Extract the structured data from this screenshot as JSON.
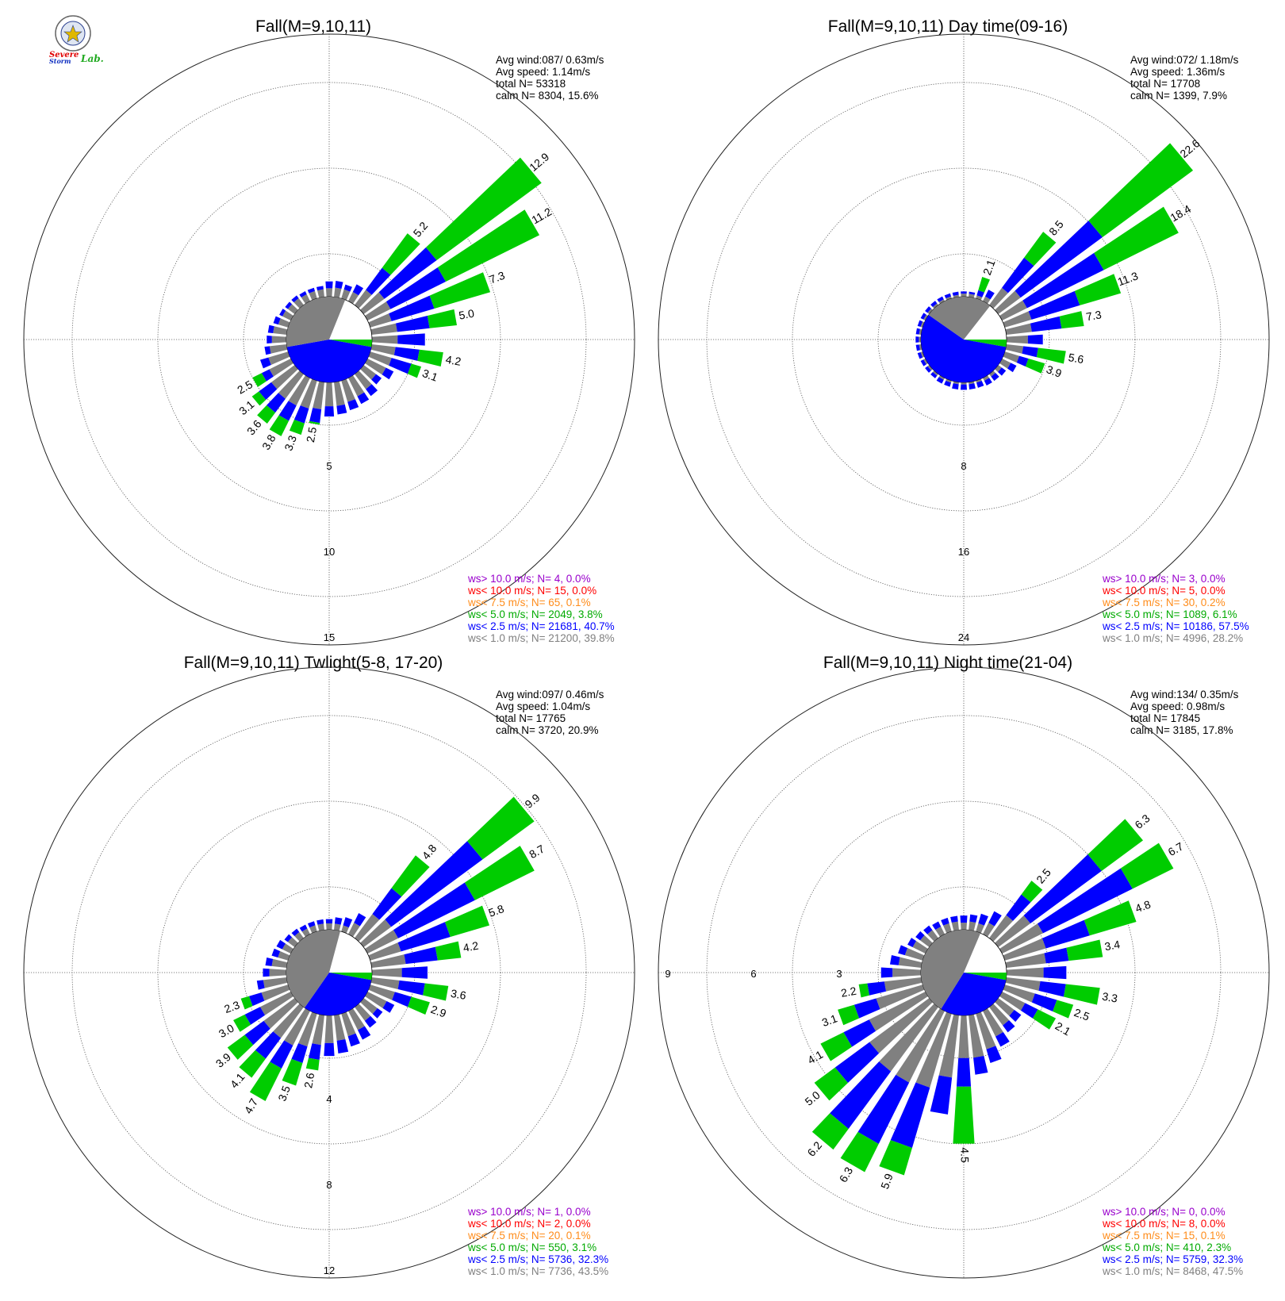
{
  "logo": {
    "text_a": "Severe",
    "text_b": "Storm",
    "text_c": "Lab."
  },
  "colors": {
    "calm_cw": "#808080",
    "calm_ccw": "#0000ff",
    "lt1": "#808080",
    "lt25": "#0000ff",
    "lt5": "#00cc00",
    "lt75": "#ff8c1a",
    "lt10": "#ff0000",
    "gt10": "#9900cc",
    "grid": "#555555"
  },
  "chart_data": [
    {
      "type": "windrose",
      "title": "Fall(M=9,10,11)",
      "stats": [
        "Avg wind:087/ 0.63m/s",
        "Avg speed: 1.14m/s",
        "total N=      53318",
        "calm N=   8304,  15.6%"
      ],
      "ring_labels": [
        "5",
        "10",
        "15"
      ],
      "ring_values": [
        5,
        10,
        15
      ],
      "calm_percent": 15.6,
      "calm_blue_end_deg": 260,
      "calm_gray_end_deg": 22,
      "legend": [
        "ws> 10.0 m/s; N=    4,  0.0%",
        "ws< 10.0 m/s; N=   15,  0.0%",
        "ws<  7.5 m/s; N=   65,  0.1%",
        "ws<  5.0 m/s; N= 2049,  3.8%",
        "ws<  2.5 m/s; N= 21681, 40.7%",
        "ws<  1.0 m/s; N= 21200, 39.8%"
      ],
      "bars": [
        [
          0,
          0.5,
          0.4
        ],
        [
          10,
          0.55,
          0.4
        ],
        [
          20,
          0.55,
          0.3
        ],
        [
          30,
          0.6,
          0.5
        ],
        [
          40,
          1.1,
          1.6,
          "5.2"
        ],
        [
          50,
          1.5,
          3.8,
          "12.9"
        ],
        [
          60,
          1.5,
          3.6,
          "11.2"
        ],
        [
          70,
          1.3,
          2.6,
          "7.3"
        ],
        [
          80,
          1.5,
          1.9,
          "5.0"
        ],
        [
          90,
          1.5,
          1.6
        ],
        [
          100,
          1.4,
          1.4,
          "4.2"
        ],
        [
          110,
          1.3,
          1.2,
          "3.1"
        ],
        [
          120,
          1.2,
          0.5
        ],
        [
          130,
          0.9,
          0.4
        ],
        [
          140,
          1.1,
          0.5
        ],
        [
          150,
          1.2,
          0.5
        ],
        [
          160,
          1.3,
          0.5
        ],
        [
          170,
          1.4,
          0.5
        ],
        [
          180,
          1.4,
          0.6
        ],
        [
          190,
          1.6,
          0.8,
          "2.5"
        ],
        [
          200,
          1.7,
          0.9,
          "3.3"
        ],
        [
          210,
          1.8,
          1.0,
          "3.8"
        ],
        [
          220,
          1.8,
          1.0,
          "3.6"
        ],
        [
          230,
          1.7,
          0.9,
          "3.1"
        ],
        [
          240,
          1.4,
          0.5,
          "2.5"
        ],
        [
          250,
          1.2,
          0.5
        ],
        [
          260,
          1.0,
          0.3
        ],
        [
          270,
          0.85,
          0.3
        ],
        [
          280,
          0.8,
          0.3
        ],
        [
          290,
          0.6,
          0.3
        ],
        [
          300,
          0.55,
          0.2
        ],
        [
          310,
          0.5,
          0.2
        ],
        [
          320,
          0.5,
          0.2
        ],
        [
          330,
          0.45,
          0.2
        ],
        [
          340,
          0.45,
          0.2
        ],
        [
          350,
          0.45,
          0.2
        ]
      ]
    },
    {
      "type": "windrose",
      "title": "Fall(M=9,10,11) Day time(09-16)",
      "stats": [
        "Avg wind:072/ 1.18m/s",
        "Avg speed: 1.36m/s",
        "total N=      17708",
        "calm N=   1399,   7.9%"
      ],
      "ring_labels": [
        "8",
        "16",
        "24"
      ],
      "ring_values": [
        8,
        16,
        24
      ],
      "calm_percent": 7.9,
      "calm_blue_end_deg": 305,
      "calm_gray_end_deg": 38,
      "legend": [
        "ws> 10.0 m/s; N=    3,  0.0%",
        "ws< 10.0 m/s; N=    5,  0.0%",
        "ws<  7.5 m/s; N=   30,  0.2%",
        "ws<  5.0 m/s; N= 1089,  6.1%",
        "ws<  2.5 m/s; N= 10186, 57.5%",
        "ws<  1.0 m/s; N=  4996, 28.2%"
      ],
      "bars": [
        [
          0,
          0.3,
          0.2
        ],
        [
          10,
          0.3,
          0.2
        ],
        [
          20,
          0.3,
          0.5,
          "2.1"
        ],
        [
          30,
          0.5,
          0.7
        ],
        [
          40,
          2.0,
          3.5,
          "8.5"
        ],
        [
          50,
          2.6,
          9.5,
          "22.6"
        ],
        [
          60,
          2.6,
          8.0,
          "18.4"
        ],
        [
          70,
          2.6,
          4.7,
          "11.3"
        ],
        [
          80,
          2.4,
          2.8,
          "7.3"
        ],
        [
          90,
          2.0,
          1.4
        ],
        [
          100,
          1.6,
          1.4,
          "5.6"
        ],
        [
          110,
          1.4,
          0.9,
          "3.9"
        ],
        [
          120,
          0.9,
          0.6
        ],
        [
          130,
          0.4,
          0.5
        ],
        [
          140,
          0.3,
          0.5
        ],
        [
          150,
          0.3,
          0.5
        ],
        [
          160,
          0.2,
          0.5
        ],
        [
          170,
          0.2,
          0.5
        ],
        [
          180,
          0.2,
          0.5
        ],
        [
          190,
          0.2,
          0.5
        ],
        [
          200,
          0.2,
          0.4
        ],
        [
          210,
          0.2,
          0.4
        ],
        [
          220,
          0.2,
          0.3
        ],
        [
          230,
          0.2,
          0.3
        ],
        [
          240,
          0.2,
          0.3
        ],
        [
          250,
          0.2,
          0.3
        ],
        [
          260,
          0.2,
          0.3
        ],
        [
          270,
          0.2,
          0.3
        ],
        [
          280,
          0.2,
          0.3
        ],
        [
          290,
          0.2,
          0.3
        ],
        [
          300,
          0.2,
          0.3
        ],
        [
          310,
          0.2,
          0.3
        ],
        [
          320,
          0.2,
          0.3
        ],
        [
          330,
          0.2,
          0.3
        ],
        [
          340,
          0.2,
          0.3
        ],
        [
          350,
          0.2,
          0.3
        ]
      ]
    },
    {
      "type": "windrose",
      "title": "Fall(M=9,10,11) Twlight(5-8, 17-20)",
      "stats": [
        "Avg wind:097/ 0.46m/s",
        "Avg speed: 1.04m/s",
        "total N=      17765",
        "calm N=   3720,  20.9%"
      ],
      "ring_labels": [
        "4",
        "8",
        "12"
      ],
      "ring_values": [
        4,
        8,
        12
      ],
      "calm_percent": 20.9,
      "calm_blue_end_deg": 215,
      "calm_gray_end_deg": 15,
      "legend": [
        "ws> 10.0 m/s; N=    1,  0.0%",
        "ws< 10.0 m/s; N=    2,  0.0%",
        "ws<  7.5 m/s; N=   20,  0.1%",
        "ws<  5.0 m/s; N=  550,  3.1%",
        "ws<  2.5 m/s; N=  5736, 32.3%",
        "ws<  1.0 m/s; N=  7736, 43.5%"
      ],
      "bars": [
        [
          0,
          0.3,
          0.2
        ],
        [
          10,
          0.3,
          0.3
        ],
        [
          20,
          0.3,
          0.4
        ],
        [
          30,
          0.6,
          0.5
        ],
        [
          40,
          1.4,
          1.5,
          "4.8"
        ],
        [
          50,
          1.6,
          5.3,
          "9.9"
        ],
        [
          60,
          1.6,
          4.0,
          "8.7"
        ],
        [
          70,
          1.5,
          2.4,
          "5.8"
        ],
        [
          80,
          1.6,
          1.5,
          "4.2"
        ],
        [
          90,
          1.4,
          1.2
        ],
        [
          100,
          1.3,
          1.2,
          "3.6"
        ],
        [
          110,
          1.2,
          0.8,
          "2.9"
        ],
        [
          120,
          1.0,
          0.4
        ],
        [
          130,
          0.8,
          0.3
        ],
        [
          140,
          0.8,
          0.4
        ],
        [
          150,
          1.0,
          0.5
        ],
        [
          160,
          1.1,
          0.5
        ],
        [
          170,
          1.2,
          0.6
        ],
        [
          180,
          1.3,
          0.6
        ],
        [
          190,
          1.4,
          0.7,
          "2.6"
        ],
        [
          200,
          1.6,
          0.8,
          "3.5"
        ],
        [
          210,
          1.8,
          1.2,
          "4.7"
        ],
        [
          220,
          1.8,
          1.2,
          "4.1"
        ],
        [
          230,
          1.8,
          1.1,
          "3.9"
        ],
        [
          240,
          1.6,
          0.8,
          "3.0"
        ],
        [
          250,
          1.3,
          0.6,
          "2.3"
        ],
        [
          260,
          1.1,
          0.3
        ],
        [
          270,
          0.8,
          0.3
        ],
        [
          280,
          0.7,
          0.3
        ],
        [
          290,
          0.5,
          0.3
        ],
        [
          300,
          0.45,
          0.3
        ],
        [
          310,
          0.4,
          0.2
        ],
        [
          320,
          0.35,
          0.2
        ],
        [
          330,
          0.3,
          0.2
        ],
        [
          340,
          0.3,
          0.2
        ],
        [
          350,
          0.3,
          0.2
        ]
      ]
    },
    {
      "type": "windrose",
      "title": "Fall(M=9,10,11) Night time(21-04)",
      "stats": [
        "Avg wind:134/ 0.35m/s",
        "Avg speed: 0.98m/s",
        "total N=      17845",
        "calm N=   3185,  17.8%"
      ],
      "ring_labels": [
        "3",
        "6",
        "9"
      ],
      "ring_values": [
        3,
        6,
        9
      ],
      "calm_percent": 17.8,
      "calm_blue_end_deg": 212,
      "calm_gray_end_deg": 23,
      "legend": [
        "ws> 10.0 m/s; N=    0,  0.0%",
        "ws< 10.0 m/s; N=    8,  0.0%",
        "ws<  7.5 m/s; N=   15,  0.1%",
        "ws<  5.0 m/s; N=  410,  2.3%",
        "ws<  2.5 m/s; N=  5759, 32.3%",
        "ws<  1.0 m/s; N=  8468, 47.5%"
      ],
      "bars": [
        [
          0,
          0.25,
          0.25
        ],
        [
          10,
          0.3,
          0.25
        ],
        [
          20,
          0.3,
          0.35
        ],
        [
          30,
          0.45,
          0.45
        ],
        [
          40,
          1.0,
          0.9,
          "2.5"
        ],
        [
          50,
          1.4,
          3.1,
          "6.3"
        ],
        [
          60,
          1.6,
          3.5,
          "6.7"
        ],
        [
          70,
          1.5,
          1.6,
          "4.8"
        ],
        [
          80,
          1.4,
          0.8,
          "3.4"
        ],
        [
          90,
          1.3,
          0.8
        ],
        [
          100,
          1.2,
          0.9,
          "3.3"
        ],
        [
          110,
          1.1,
          0.8,
          "2.5"
        ],
        [
          120,
          0.9,
          0.5,
          "2.1"
        ],
        [
          130,
          0.7,
          0.3
        ],
        [
          140,
          0.8,
          0.3
        ],
        [
          150,
          1.0,
          0.4
        ],
        [
          160,
          1.3,
          0.5
        ],
        [
          170,
          1.5,
          0.6
        ],
        [
          180,
          1.5,
          1.0,
          "4.5"
        ],
        [
          190,
          2.2,
          1.3
        ],
        [
          200,
          2.7,
          2.2,
          "5.9"
        ],
        [
          210,
          2.8,
          2.4,
          "6.3"
        ],
        [
          220,
          2.8,
          2.5,
          "6.2"
        ],
        [
          230,
          2.6,
          1.5,
          "5.0"
        ],
        [
          240,
          2.2,
          1.0,
          "4.1"
        ],
        [
          250,
          1.7,
          0.8,
          "3.1"
        ],
        [
          260,
          1.3,
          0.6,
          "2.2"
        ],
        [
          270,
          1.0,
          0.4
        ],
        [
          280,
          0.8,
          0.3
        ],
        [
          290,
          0.65,
          0.25
        ],
        [
          300,
          0.5,
          0.2
        ],
        [
          310,
          0.4,
          0.2
        ],
        [
          320,
          0.35,
          0.2
        ],
        [
          330,
          0.3,
          0.2
        ],
        [
          340,
          0.3,
          0.2
        ],
        [
          350,
          0.3,
          0.2
        ]
      ]
    }
  ]
}
